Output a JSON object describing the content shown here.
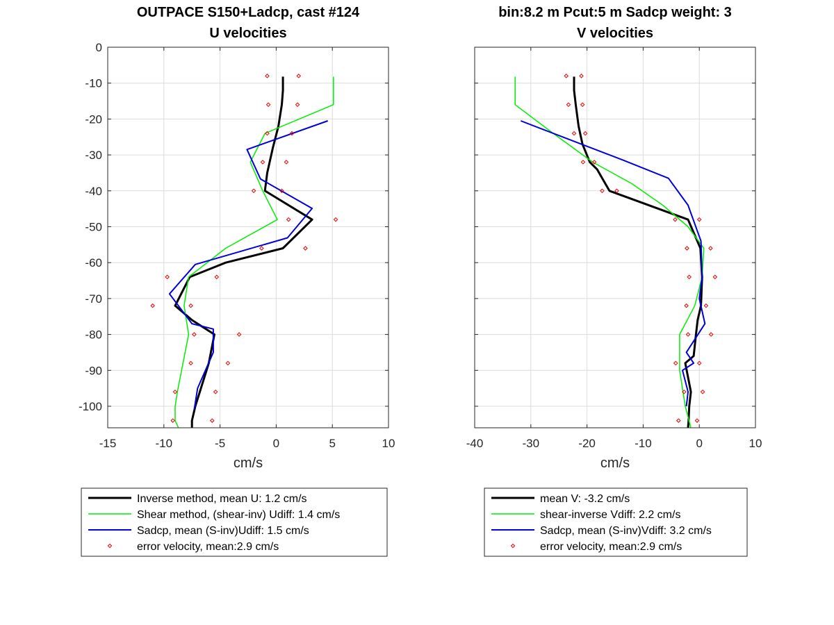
{
  "chart_data": [
    {
      "type": "line",
      "title": [
        "OUTPACE S150+Ladcp, cast #124",
        "U velocities"
      ],
      "xlabel": "cm/s",
      "ylabel": "",
      "xlim": [
        -15,
        10
      ],
      "ylim": [
        -106,
        0
      ],
      "xticks": [
        -15,
        -10,
        -5,
        0,
        5,
        10
      ],
      "yticks": [
        0,
        -10,
        -20,
        -30,
        -40,
        -50,
        -60,
        -70,
        -80,
        -90,
        -100
      ],
      "grid": true,
      "legend_position": "below",
      "series": [
        {
          "name": "Inverse method, mean U:  1.2 cm/s",
          "color": "#000000",
          "style": "line",
          "x": [
            0.6,
            0.6,
            0.5,
            0.2,
            -0.3,
            -0.8,
            -1.0,
            3.2,
            0.6,
            -4.5,
            -7.7,
            -9.0,
            -7.5,
            -5.5,
            -6.0,
            -6.8,
            -7.2,
            -7.5,
            -7.5
          ],
          "y": [
            -8.2,
            -12,
            -16,
            -22,
            -28,
            -35,
            -40,
            -48,
            -56,
            -60,
            -64,
            -72,
            -76,
            -80,
            -88,
            -96,
            -100,
            -104,
            -106
          ]
        },
        {
          "name": "Shear method, (shear-inv)  Udiff:  1.4 cm/s",
          "color": "#00ee00",
          "style": "line",
          "x": [
            5.1,
            5.1,
            -1.0,
            -2.3,
            -1.2,
            0.1,
            -4.5,
            -7.8,
            -8.2,
            -7.8,
            -8.3,
            -8.8,
            -9.0,
            -9.0,
            -8.7
          ],
          "y": [
            -8.2,
            -16,
            -24,
            -32,
            -40,
            -48,
            -56,
            -64,
            -72,
            -80,
            -88,
            -96,
            -100,
            -104,
            -106
          ]
        },
        {
          "name": "Sadcp, mean (S-inv)Udiff: 1.5 cm/s",
          "color": "#0000dd",
          "style": "line",
          "x": [
            4.6,
            -2.6,
            -1.4,
            3.2,
            1.0,
            -7.2,
            -9.5,
            -7.5,
            -5.6,
            -5.6,
            -7.0,
            -7.3
          ],
          "y": [
            -20.5,
            -28.5,
            -36.7,
            -44.9,
            -53.1,
            -60.5,
            -68.7,
            -77,
            -78.5,
            -85,
            -95,
            -101
          ]
        },
        {
          "name": "error velocity, mean:2.9 cm/s",
          "color": "#ee0000",
          "style": "marker",
          "x": [
            -0.8,
            2.0,
            -0.7,
            1.9,
            -0.8,
            1.4,
            -1.2,
            0.9,
            -2.0,
            0.5,
            5.3,
            1.1,
            -1.3,
            2.6,
            -9.7,
            -5.3,
            -11.0,
            -7.6,
            -7.3,
            -3.3,
            -7.6,
            -4.3,
            -9.0,
            -5.4,
            -9.2,
            -5.7
          ],
          "y": [
            -8,
            -8,
            -16,
            -16,
            -24,
            -24,
            -32,
            -32,
            -40,
            -40,
            -48,
            -48,
            -56,
            -56,
            -64,
            -64,
            -72,
            -72,
            -80,
            -80,
            -88,
            -88,
            -96,
            -96,
            -104,
            -104
          ]
        }
      ]
    },
    {
      "type": "line",
      "title": [
        "bin:8.2 m  Pcut:5 m  Sadcp weight: 3",
        "V velocities"
      ],
      "xlabel": "cm/s",
      "ylabel": "",
      "xlim": [
        -40,
        10
      ],
      "ylim": [
        -106,
        0
      ],
      "xticks": [
        -40,
        -30,
        -20,
        -10,
        0,
        10
      ],
      "yticks": [
        0,
        -10,
        -20,
        -30,
        -40,
        -50,
        -60,
        -70,
        -80,
        -90,
        -100
      ],
      "grid": true,
      "legend_position": "below",
      "series": [
        {
          "name": "mean V:  -3.2 cm/s",
          "color": "#000000",
          "style": "line",
          "x": [
            -22.3,
            -22.3,
            -22.0,
            -21.5,
            -20.8,
            -19.5,
            -18.2,
            -16.0,
            -2.0,
            0.2,
            0.5,
            0.3,
            -0.3,
            -0.6,
            -1.0,
            -2.5,
            -1.5,
            -1.8,
            -1.9,
            -2.0
          ],
          "y": [
            -8.2,
            -12,
            -16,
            -22,
            -27,
            -32,
            -34,
            -40,
            -48,
            -56,
            -64,
            -72,
            -76,
            -80,
            -86,
            -88,
            -96,
            -100,
            -104,
            -106
          ]
        },
        {
          "name": "shear-inverse Vdiff:  2.2 cm/s",
          "color": "#00ee00",
          "style": "line",
          "x": [
            -32.8,
            -32.8,
            -26.0,
            -19.0,
            -12.0,
            -6.5,
            -2.0,
            0.8,
            0.5,
            -0.8,
            -3.5,
            -3.5,
            -2.5,
            -1.5
          ],
          "y": [
            -8.2,
            -16,
            -24,
            -32,
            -38,
            -44,
            -50,
            -56,
            -64,
            -72,
            -80,
            -90,
            -100,
            -106
          ]
        },
        {
          "name": "Sadcp, mean (S-inv)Vdiff: 3.2 cm/s",
          "color": "#0000dd",
          "style": "line",
          "x": [
            -31.8,
            -21.0,
            -13.5,
            -5.5,
            -2.0,
            0.3,
            0.5,
            0.0,
            1.0,
            -2.3,
            -1.0,
            -3.0,
            -2.0,
            -2.3
          ],
          "y": [
            -20.5,
            -27,
            -31.5,
            -36.5,
            -44,
            -54,
            -64,
            -70,
            -77,
            -85,
            -88,
            -90,
            -96,
            -100
          ]
        },
        {
          "name": "error velocity, mean:2.9 cm/s",
          "color": "#ee0000",
          "style": "marker",
          "x": [
            -23.7,
            -21.0,
            -23.3,
            -20.8,
            -22.3,
            -20.3,
            -20.7,
            -18.7,
            -17.3,
            -14.7,
            -4.3,
            0.0,
            -2.2,
            2.0,
            -1.8,
            2.8,
            -2.3,
            1.2,
            -2.0,
            2.1,
            -4.2,
            0.0,
            -2.7,
            0.6,
            -3.7,
            -0.4
          ],
          "y": [
            -8,
            -8,
            -16,
            -16,
            -24,
            -24,
            -32,
            -32,
            -40,
            -40,
            -48,
            -48,
            -56,
            -56,
            -64,
            -64,
            -72,
            -72,
            -80,
            -80,
            -88,
            -88,
            -96,
            -96,
            -104,
            -104
          ]
        }
      ]
    }
  ]
}
